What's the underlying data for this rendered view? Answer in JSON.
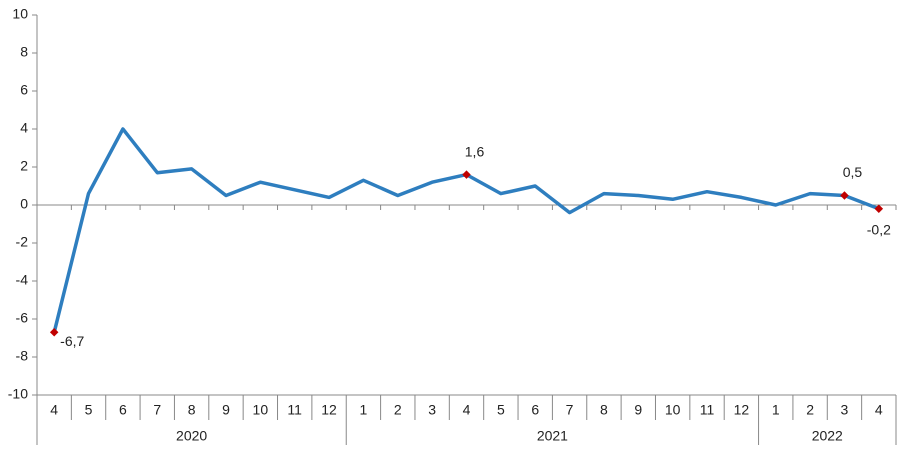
{
  "chart_data": {
    "type": "line",
    "categories": [
      "4",
      "5",
      "6",
      "7",
      "8",
      "9",
      "10",
      "11",
      "12",
      "1",
      "2",
      "3",
      "4",
      "5",
      "6",
      "7",
      "8",
      "9",
      "10",
      "11",
      "12",
      "1",
      "2",
      "3",
      "4"
    ],
    "years": [
      "2020",
      "2021",
      "2022"
    ],
    "series": [
      {
        "color": "#2e7ebf",
        "values": [
          -6.7,
          0.6,
          4.0,
          1.7,
          1.9,
          0.5,
          1.2,
          0.8,
          0.4,
          1.3,
          0.5,
          1.2,
          1.6,
          0.6,
          1.0,
          -0.4,
          0.6,
          0.5,
          0.3,
          0.7,
          0.4,
          0.0,
          0.6,
          0.5,
          -0.2
        ],
        "value_labels": [
          "-6,7",
          null,
          null,
          null,
          null,
          null,
          null,
          null,
          null,
          null,
          null,
          null,
          "1,6",
          null,
          null,
          null,
          null,
          null,
          null,
          null,
          null,
          null,
          null,
          "0,5",
          "-0,2"
        ],
        "marker_color": "#c00000"
      }
    ],
    "ylim": [
      -10,
      10
    ],
    "yticks": [
      -10,
      -8,
      -6,
      -4,
      -2,
      0,
      2,
      4,
      6,
      8,
      10
    ]
  }
}
